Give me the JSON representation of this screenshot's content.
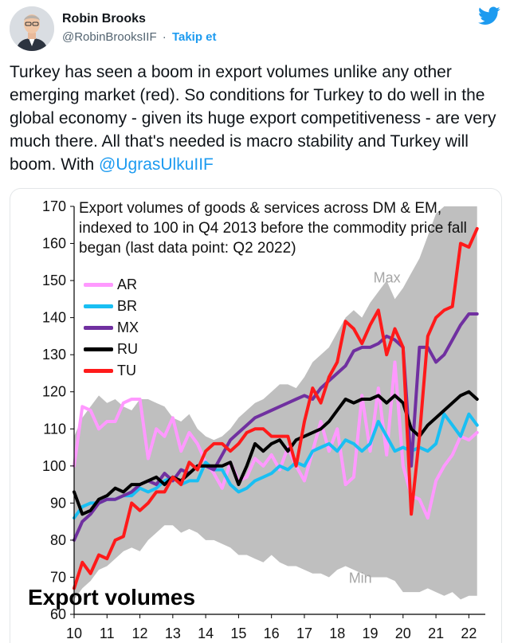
{
  "tweet": {
    "author_name": "Robin Brooks",
    "handle": "@RobinBrooksIIF",
    "separator": "·",
    "follow_label": "Takip et",
    "text": "Turkey has seen a boom in export volumes unlike any other emerging market (red). So conditions for Turkey to do well in the global economy - given its huge export competitiveness - are very much there. All that's needed is macro stability and Turkey will boom. With ",
    "mention": "@UgrasUlkuIIF",
    "brand_color": "#1d9bf0"
  },
  "chart_data": {
    "type": "line",
    "title": "Export volumes of goods & services across DM & EM, indexed to 100 in Q4 2013  before the commodity price fall began (last data point: Q2 2022)",
    "corner_label": "Export volumes",
    "band_labels": {
      "max": "Max",
      "min": "Min"
    },
    "band_color": "#bfbfbf",
    "ylim": [
      60,
      170
    ],
    "yticks": [
      60,
      70,
      80,
      90,
      100,
      110,
      120,
      130,
      140,
      150,
      160,
      170
    ],
    "xlim": [
      10,
      22.5
    ],
    "xticks": [
      "10",
      "11",
      "12",
      "13",
      "14",
      "15",
      "16",
      "17",
      "18",
      "19",
      "20",
      "21",
      "22"
    ],
    "band": {
      "x": [
        10,
        10.25,
        10.5,
        10.75,
        11,
        11.25,
        11.5,
        11.75,
        12,
        12.25,
        12.5,
        12.75,
        13,
        13.25,
        13.5,
        13.75,
        14,
        14.25,
        14.5,
        14.75,
        15,
        15.25,
        15.5,
        15.75,
        16,
        16.25,
        16.5,
        16.75,
        17,
        17.25,
        17.5,
        17.75,
        18,
        18.25,
        18.5,
        18.75,
        19,
        19.25,
        19.5,
        19.75,
        20,
        20.25,
        20.5,
        20.75,
        21,
        21.25,
        21.5,
        21.75,
        22,
        22.25
      ],
      "max": [
        108,
        113,
        116,
        119,
        117,
        118,
        116,
        115,
        118,
        118,
        117,
        116,
        113,
        112,
        114,
        110,
        108,
        107,
        108,
        110,
        113,
        115,
        117,
        118,
        120,
        122,
        122,
        121,
        124,
        128,
        130,
        132,
        136,
        140,
        142,
        140,
        144,
        147,
        150,
        145,
        148,
        152,
        156,
        162,
        168,
        170,
        170,
        170,
        170,
        170
      ],
      "min": [
        64,
        67,
        69,
        72,
        73,
        75,
        77,
        78,
        77,
        80,
        82,
        84,
        84,
        82,
        83,
        82,
        80,
        80,
        79,
        78,
        76,
        76,
        75,
        74,
        76,
        74,
        73,
        73,
        72,
        71,
        71,
        70,
        72,
        73,
        72,
        71,
        70,
        70,
        70,
        69,
        66,
        66,
        66,
        67,
        66,
        65,
        66,
        64,
        65,
        65
      ]
    },
    "series": [
      {
        "name": "AR",
        "color": "#ff99ff",
        "x": [
          10,
          10.25,
          10.5,
          10.75,
          11,
          11.25,
          11.5,
          11.75,
          12,
          12.25,
          12.5,
          12.75,
          13,
          13.25,
          13.5,
          13.75,
          14,
          14.25,
          14.5,
          14.75,
          15,
          15.25,
          15.5,
          15.75,
          16,
          16.25,
          16.5,
          16.75,
          17,
          17.25,
          17.5,
          17.75,
          18,
          18.25,
          18.5,
          18.75,
          19,
          19.25,
          19.5,
          19.75,
          20,
          20.25,
          20.5,
          20.75,
          21,
          21.25,
          21.5,
          21.75,
          22,
          22.25
        ],
        "y": [
          100,
          116,
          115,
          110,
          112,
          112,
          117,
          118,
          118,
          102,
          110,
          108,
          113,
          104,
          109,
          106,
          101,
          98,
          94,
          101,
          96,
          97,
          102,
          100,
          103,
          99,
          105,
          100,
          96,
          104,
          112,
          104,
          110,
          95,
          97,
          119,
          104,
          121,
          103,
          128,
          100,
          92,
          91,
          86,
          96,
          100,
          103,
          108,
          107,
          109
        ]
      },
      {
        "name": "BR",
        "color": "#19bff3",
        "x": [
          10,
          10.25,
          10.5,
          10.75,
          11,
          11.25,
          11.5,
          11.75,
          12,
          12.25,
          12.5,
          12.75,
          13,
          13.25,
          13.5,
          13.75,
          14,
          14.25,
          14.5,
          14.75,
          15,
          15.25,
          15.5,
          15.75,
          16,
          16.25,
          16.5,
          16.75,
          17,
          17.25,
          17.5,
          17.75,
          18,
          18.25,
          18.5,
          18.75,
          19,
          19.25,
          19.5,
          19.75,
          20,
          20.25,
          20.5,
          20.75,
          21,
          21.25,
          21.5,
          21.75,
          22,
          22.25
        ],
        "y": [
          86,
          89,
          90,
          90,
          91,
          91,
          92,
          92,
          94,
          93,
          94,
          96,
          97,
          95,
          96,
          96,
          101,
          99,
          99,
          95,
          93,
          94,
          96,
          97,
          98,
          100,
          99,
          101,
          100,
          104,
          105,
          106,
          104,
          107,
          106,
          104,
          106,
          112,
          108,
          104,
          105,
          104,
          105,
          104,
          106,
          114,
          111,
          108,
          114,
          111
        ]
      },
      {
        "name": "MX",
        "color": "#7030a0",
        "x": [
          10,
          10.25,
          10.5,
          10.75,
          11,
          11.25,
          11.5,
          11.75,
          12,
          12.25,
          12.5,
          12.75,
          13,
          13.25,
          13.5,
          13.75,
          14,
          14.25,
          14.5,
          14.75,
          15,
          15.25,
          15.5,
          15.75,
          16,
          16.25,
          16.5,
          16.75,
          17,
          17.25,
          17.5,
          17.75,
          18,
          18.25,
          18.5,
          18.75,
          19,
          19.25,
          19.5,
          19.75,
          20,
          20.25,
          20.5,
          20.75,
          21,
          21.25,
          21.5,
          21.75,
          22,
          22.25
        ],
        "y": [
          80,
          85,
          87,
          90,
          91,
          91,
          92,
          93,
          95,
          96,
          95,
          98,
          96,
          99,
          98,
          100,
          100,
          99,
          103,
          107,
          109,
          111,
          113,
          114,
          115,
          116,
          117,
          118,
          119,
          118,
          121,
          123,
          125,
          127,
          131,
          132,
          132,
          133,
          135,
          134,
          132,
          100,
          132,
          132,
          128,
          130,
          134,
          138,
          141,
          141
        ]
      },
      {
        "name": "RU",
        "color": "#000000",
        "x": [
          10,
          10.25,
          10.5,
          10.75,
          11,
          11.25,
          11.5,
          11.75,
          12,
          12.25,
          12.5,
          12.75,
          13,
          13.25,
          13.5,
          13.75,
          14,
          14.25,
          14.5,
          14.75,
          15,
          15.25,
          15.5,
          15.75,
          16,
          16.25,
          16.5,
          16.75,
          17,
          17.25,
          17.5,
          17.75,
          18,
          18.25,
          18.5,
          18.75,
          19,
          19.25,
          19.5,
          19.75,
          20,
          20.25,
          20.5,
          20.75,
          21,
          21.25,
          21.5,
          21.75,
          22,
          22.25
        ],
        "y": [
          93,
          87,
          88,
          91,
          92,
          94,
          93,
          95,
          95,
          96,
          97,
          95,
          97,
          96,
          98,
          100,
          100,
          100,
          100,
          101,
          95,
          100,
          106,
          104,
          106,
          107,
          104,
          107,
          108,
          109,
          110,
          112,
          115,
          118,
          117,
          118,
          118,
          119,
          117,
          119,
          117,
          110,
          108,
          111,
          113,
          115,
          117,
          119,
          120,
          118
        ]
      },
      {
        "name": "TU",
        "color": "#ff1a1a",
        "x": [
          10,
          10.25,
          10.5,
          10.75,
          11,
          11.25,
          11.5,
          11.75,
          12,
          12.25,
          12.5,
          12.75,
          13,
          13.25,
          13.5,
          13.75,
          14,
          14.25,
          14.5,
          14.75,
          15,
          15.25,
          15.5,
          15.75,
          16,
          16.25,
          16.5,
          16.75,
          17,
          17.25,
          17.5,
          17.75,
          18,
          18.25,
          18.5,
          18.75,
          19,
          19.25,
          19.5,
          19.75,
          20,
          20.25,
          20.5,
          20.75,
          21,
          21.25,
          21.5,
          21.75,
          22,
          22.25
        ],
        "y": [
          67,
          74,
          71,
          76,
          75,
          80,
          81,
          90,
          88,
          90,
          93,
          93,
          97,
          95,
          101,
          99,
          104,
          106,
          106,
          104,
          106,
          109,
          110,
          110,
          108,
          108,
          108,
          100,
          112,
          121,
          117,
          124,
          128,
          139,
          137,
          133,
          138,
          142,
          130,
          137,
          132,
          87,
          108,
          135,
          140,
          142,
          143,
          160,
          159,
          164
        ]
      }
    ]
  }
}
